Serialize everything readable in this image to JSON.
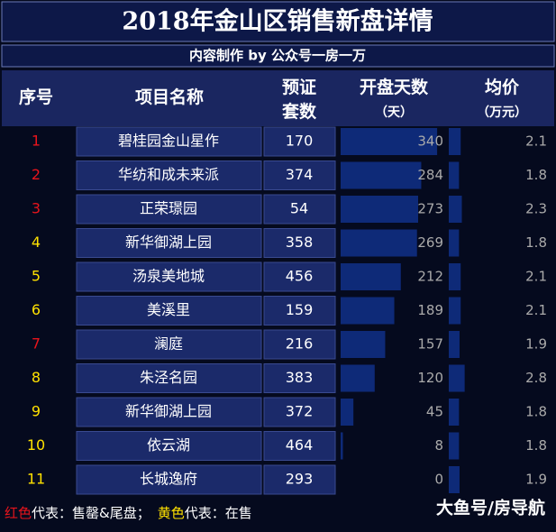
{
  "title": "2018年金山区销售新盘详情",
  "subtitle": "内容制作 by 公众号一房一万",
  "header": {
    "rank": "序号",
    "name": "项目名称",
    "units": [
      "预证",
      "套数"
    ],
    "days": [
      "开盘天数",
      "（天）"
    ],
    "price": [
      "均价",
      "（万元）"
    ]
  },
  "status_colors": {
    "sold": "#e8141c",
    "selling": "#ffe100"
  },
  "rows": [
    {
      "rank": 1,
      "name": "碧桂园金山星作",
      "units": 170,
      "days": 340,
      "price": 2.1,
      "status": "sold"
    },
    {
      "rank": 2,
      "name": "华纺和成未来派",
      "units": 374,
      "days": 284,
      "price": 1.8,
      "status": "sold"
    },
    {
      "rank": 3,
      "name": "正荣璟园",
      "units": 54,
      "days": 273,
      "price": 2.3,
      "status": "sold"
    },
    {
      "rank": 4,
      "name": "新华御湖上园",
      "units": 358,
      "days": 269,
      "price": 1.8,
      "status": "selling"
    },
    {
      "rank": 5,
      "name": "汤泉美地城",
      "units": 456,
      "days": 212,
      "price": 2.1,
      "status": "selling"
    },
    {
      "rank": 6,
      "name": "美溪里",
      "units": 159,
      "days": 189,
      "price": 2.1,
      "status": "selling"
    },
    {
      "rank": 7,
      "name": "澜庭",
      "units": 216,
      "days": 157,
      "price": 1.9,
      "status": "sold"
    },
    {
      "rank": 8,
      "name": "朱泾名园",
      "units": 383,
      "days": 120,
      "price": 2.8,
      "status": "selling"
    },
    {
      "rank": 9,
      "name": "新华御湖上园",
      "units": 372,
      "days": 45,
      "price": 1.8,
      "status": "selling"
    },
    {
      "rank": 10,
      "name": "依云湖",
      "units": 464,
      "days": 8,
      "price": 1.8,
      "status": "selling"
    },
    {
      "rank": 11,
      "name": "长城逸府",
      "units": 293,
      "days": 0,
      "price": 1.9,
      "status": "selling"
    }
  ],
  "legend": {
    "sold_label": "红色",
    "sold_text": "代表：售罄&尾盘；",
    "selling_label": "黄色",
    "selling_text": "代表：在售"
  },
  "watermark": "大鱼号/房导航"
}
